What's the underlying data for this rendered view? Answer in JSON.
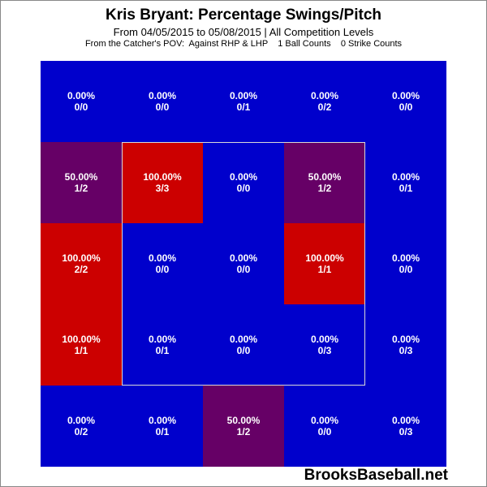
{
  "title": "Kris Bryant: Percentage Swings/Pitch",
  "subtitle": "From 04/05/2015 to 05/08/2015 | All Competition Levels",
  "subtitle2": "From the Catcher's POV:  Against RHP & LHP    1 Ball Counts    0 Strike Counts",
  "watermark": "BrooksBaseball.net",
  "colors": {
    "low": "#0000cc",
    "mid": "#660066",
    "high": "#cc0000",
    "zone_border": "#d8d8d8"
  },
  "chart_data": {
    "type": "heatmap",
    "title": "Kris Bryant: Percentage Swings/Pitch",
    "rows": 5,
    "cols": 5,
    "cells": [
      [
        {
          "pct": "0.00%",
          "count": "0/0"
        },
        {
          "pct": "0.00%",
          "count": "0/0"
        },
        {
          "pct": "0.00%",
          "count": "0/1"
        },
        {
          "pct": "0.00%",
          "count": "0/2"
        },
        {
          "pct": "0.00%",
          "count": "0/0"
        }
      ],
      [
        {
          "pct": "50.00%",
          "count": "1/2"
        },
        {
          "pct": "100.00%",
          "count": "3/3"
        },
        {
          "pct": "0.00%",
          "count": "0/0"
        },
        {
          "pct": "50.00%",
          "count": "1/2"
        },
        {
          "pct": "0.00%",
          "count": "0/1"
        }
      ],
      [
        {
          "pct": "100.00%",
          "count": "2/2"
        },
        {
          "pct": "0.00%",
          "count": "0/0"
        },
        {
          "pct": "0.00%",
          "count": "0/0"
        },
        {
          "pct": "100.00%",
          "count": "1/1"
        },
        {
          "pct": "0.00%",
          "count": "0/0"
        }
      ],
      [
        {
          "pct": "100.00%",
          "count": "1/1"
        },
        {
          "pct": "0.00%",
          "count": "0/1"
        },
        {
          "pct": "0.00%",
          "count": "0/0"
        },
        {
          "pct": "0.00%",
          "count": "0/3"
        },
        {
          "pct": "0.00%",
          "count": "0/3"
        }
      ],
      [
        {
          "pct": "0.00%",
          "count": "0/2"
        },
        {
          "pct": "0.00%",
          "count": "0/1"
        },
        {
          "pct": "50.00%",
          "count": "1/2"
        },
        {
          "pct": "0.00%",
          "count": "0/0"
        },
        {
          "pct": "0.00%",
          "count": "0/3"
        }
      ]
    ]
  }
}
